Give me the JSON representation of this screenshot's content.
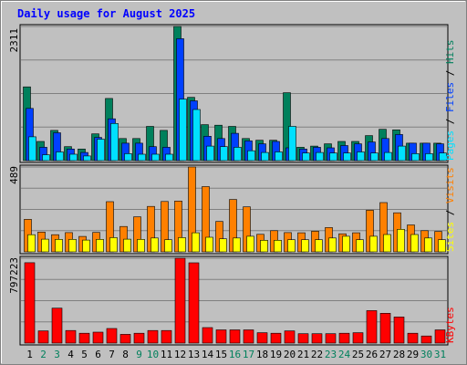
{
  "chart_data": {
    "type": "bar",
    "title": "Daily usage for August 2025",
    "categories": [
      "1",
      "2",
      "3",
      "4",
      "5",
      "6",
      "7",
      "8",
      "9",
      "10",
      "11",
      "12",
      "13",
      "14",
      "15",
      "16",
      "17",
      "18",
      "19",
      "20",
      "21",
      "22",
      "23",
      "24",
      "25",
      "26",
      "27",
      "28",
      "29",
      "30",
      "31"
    ],
    "weekend_days": [
      "2",
      "3",
      "9",
      "10",
      "16",
      "17",
      "23",
      "24",
      "30",
      "31"
    ],
    "panels": [
      {
        "name": "hits-files-pages",
        "max_label": "2311",
        "ylim": [
          0,
          2311
        ],
        "grid": true,
        "series": [
          {
            "name": "Hits",
            "color": "#00805c",
            "values": [
              1270,
              330,
              520,
              240,
              200,
              460,
              1070,
              380,
              380,
              590,
              520,
              2311,
              1090,
              620,
              610,
              590,
              380,
              350,
              350,
              1170,
              230,
              250,
              290,
              330,
              330,
              430,
              540,
              530,
              300,
              300,
              300
            ]
          },
          {
            "name": "Files",
            "color": "#0040ff",
            "values": [
              900,
              230,
              480,
              200,
              140,
              400,
              720,
              300,
              300,
              240,
              230,
              2100,
              1030,
              420,
              380,
              470,
              340,
              290,
              330,
              220,
              200,
              230,
              220,
              260,
              290,
              320,
              380,
              450,
              300,
              300,
              290
            ]
          },
          {
            "name": "Pages",
            "color": "#00e0ff",
            "values": [
              410,
              100,
              150,
              110,
              80,
              370,
              640,
              120,
              110,
              110,
              110,
              1060,
              880,
              250,
              240,
              230,
              170,
              140,
              150,
              590,
              130,
              140,
              130,
              130,
              150,
              130,
              140,
              250,
              120,
              120,
              130
            ]
          }
        ]
      },
      {
        "name": "visits-sites",
        "max_label": "489",
        "ylim": [
          0,
          489
        ],
        "grid": true,
        "series": [
          {
            "name": "Visits",
            "color": "#ff8000",
            "values": [
              187,
              114,
              99,
              111,
              89,
              112,
              289,
              146,
              202,
              262,
              290,
              293,
              489,
              376,
              175,
              302,
              259,
              101,
              122,
              111,
              110,
              119,
              140,
              104,
              110,
              240,
              284,
              225,
              155,
              122,
              117
            ]
          },
          {
            "name": "Sites",
            "color": "#ffff00",
            "values": [
              99,
              73,
              72,
              72,
              68,
              72,
              82,
              73,
              72,
              80,
              70,
              82,
              110,
              84,
              75,
              80,
              90,
              67,
              67,
              70,
              70,
              70,
              80,
              90,
              70,
              90,
              100,
              130,
              100,
              80,
              70
            ]
          }
        ]
      },
      {
        "name": "kbytes",
        "max_label": "797223",
        "ylim": [
          0,
          797223
        ],
        "grid": true,
        "series": [
          {
            "name": "KBytes",
            "color": "#ff0000",
            "values": [
              755000,
              115000,
              328000,
              118000,
              93000,
              103000,
              137000,
              82000,
              93000,
              118000,
              118000,
              797223,
              754000,
              146000,
              124000,
              124000,
              124000,
              98000,
              93000,
              115000,
              88000,
              88000,
              88000,
              93000,
              98000,
              305000,
              280000,
              245000,
              93000,
              67000,
              124000
            ]
          }
        ]
      }
    ]
  }
}
